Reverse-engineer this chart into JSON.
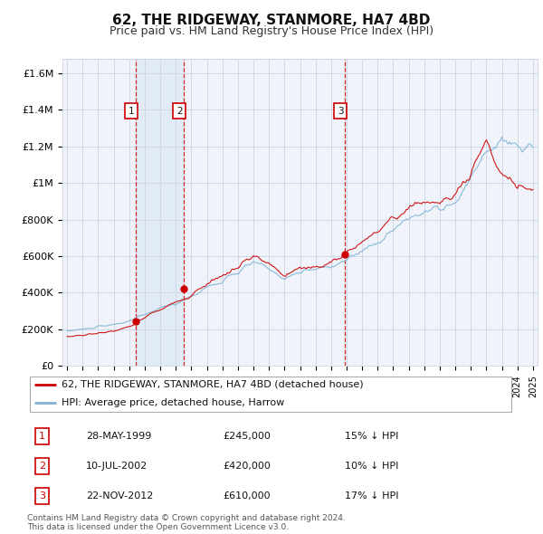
{
  "title": "62, THE RIDGEWAY, STANMORE, HA7 4BD",
  "subtitle": "Price paid vs. HM Land Registry's House Price Index (HPI)",
  "title_fontsize": 11,
  "subtitle_fontsize": 9,
  "ylabel_ticks": [
    0,
    200000,
    400000,
    600000,
    800000,
    1000000,
    1200000,
    1400000,
    1600000
  ],
  "ylabel_labels": [
    "£0",
    "£200K",
    "£400K",
    "£600K",
    "£800K",
    "£1M",
    "£1.2M",
    "£1.4M",
    "£1.6M"
  ],
  "ylim": [
    0,
    1680000
  ],
  "xlim_start": 1994.7,
  "xlim_end": 2025.3,
  "line_color_property": "#cc0000",
  "line_color_hpi": "#7fb3d3",
  "sale_dates": [
    1999.41,
    2002.53,
    2012.9
  ],
  "sale_prices": [
    245000,
    420000,
    610000
  ],
  "sale_labels": [
    "1",
    "2",
    "3"
  ],
  "sale_date_strs": [
    "28-MAY-1999",
    "10-JUL-2002",
    "22-NOV-2012"
  ],
  "sale_price_strs": [
    "£245,000",
    "£420,000",
    "£610,000"
  ],
  "sale_pct_strs": [
    "15% ↓ HPI",
    "10% ↓ HPI",
    "17% ↓ HPI"
  ],
  "legend_property": "62, THE RIDGEWAY, STANMORE, HA7 4BD (detached house)",
  "legend_hpi": "HPI: Average price, detached house, Harrow",
  "footer": "Contains HM Land Registry data © Crown copyright and database right 2024.\nThis data is licensed under the Open Government Licence v3.0.",
  "background_color": "#ffffff",
  "plot_bg_color": "#f0f4fa",
  "grid_color": "#d0d8e8",
  "vline_color": "#cc0000",
  "marker_box_color": "#cc0000",
  "shade_color": "#dce8f5",
  "shade_alpha": 0.7
}
